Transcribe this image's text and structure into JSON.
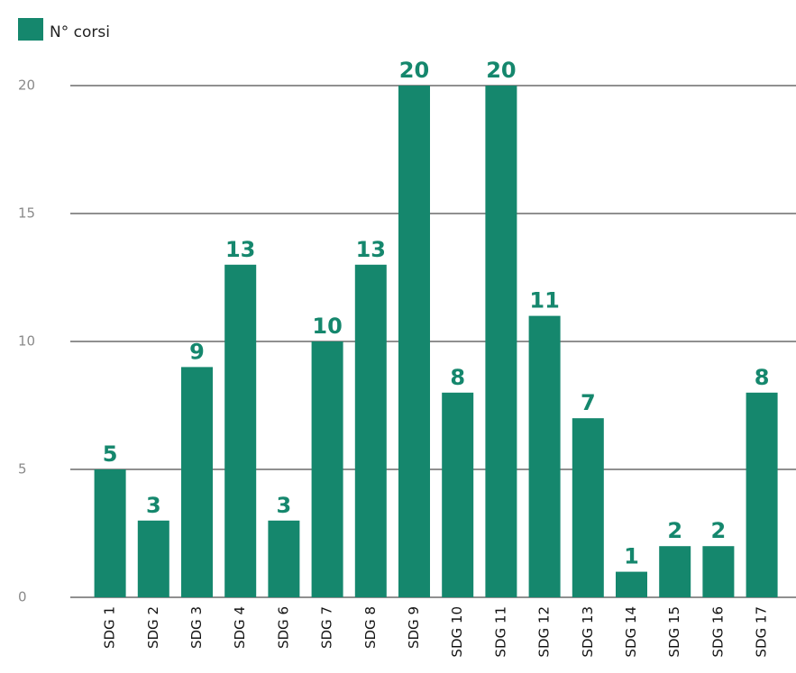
{
  "chart_data": {
    "type": "bar",
    "legend": "N° corsi",
    "categories": [
      "SDG 1",
      "SDG 2",
      "SDG 3",
      "SDG 4",
      "SDG 6",
      "SDG 7",
      "SDG 8",
      "SDG 9",
      "SDG 10",
      "SDG 11",
      "SDG 12",
      "SDG 13",
      "SDG 14",
      "SDG 15",
      "SDG 16",
      "SDG 17"
    ],
    "values": [
      5,
      3,
      9,
      13,
      3,
      10,
      13,
      20,
      8,
      20,
      11,
      7,
      1,
      2,
      2,
      8
    ],
    "color": "#15876d",
    "ylim": [
      0,
      20
    ],
    "yticks": [
      0,
      5,
      10,
      15,
      20
    ],
    "grid": true,
    "legend_position": "top-left"
  }
}
